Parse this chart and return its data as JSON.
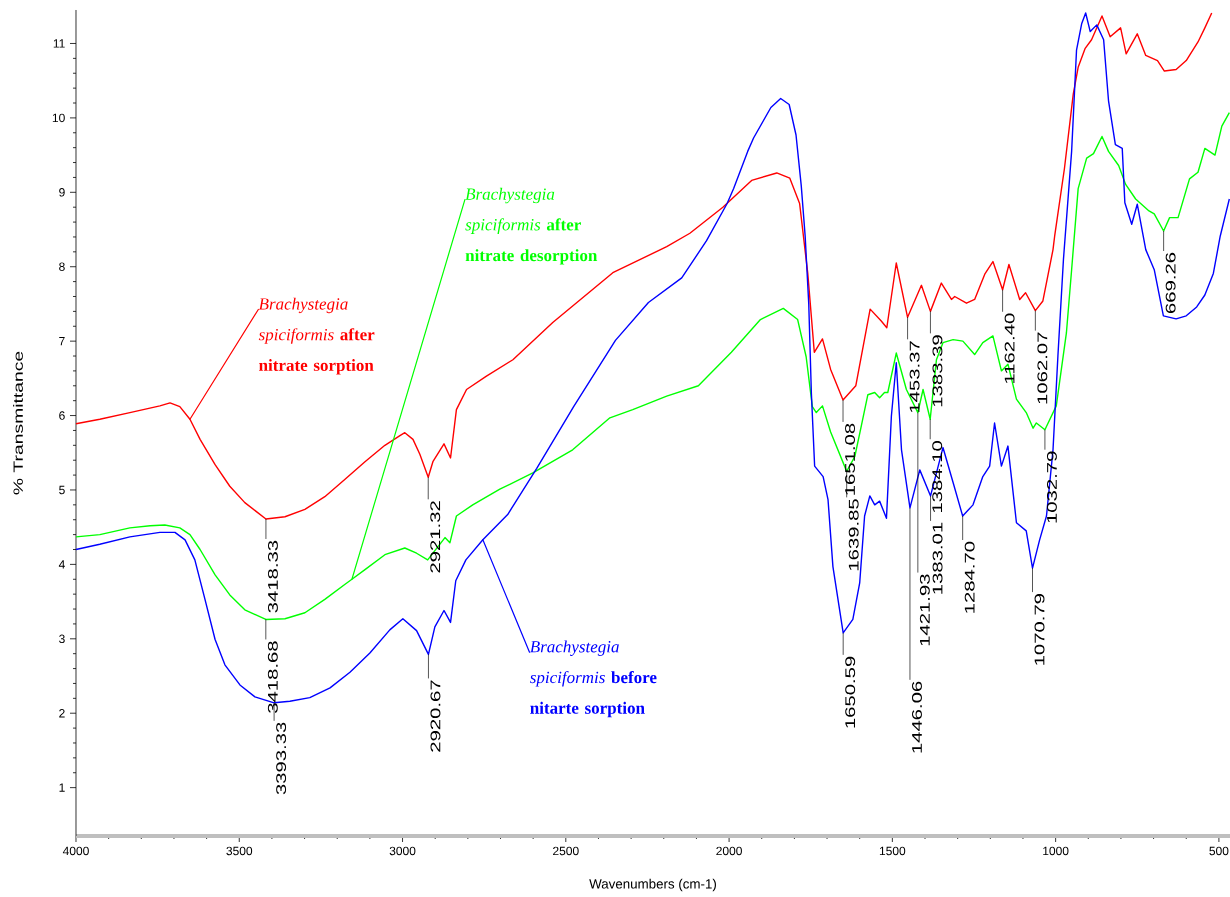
{
  "chart_data": {
    "type": "line",
    "xlabel": "Wavenumbers (cm-1)",
    "ylabel": "% Transmittance",
    "xlim": [
      4000,
      466
    ],
    "ylim": [
      0.35,
      11.45
    ],
    "xticks": [
      4000,
      3500,
      3000,
      2500,
      2000,
      1500,
      1000,
      500
    ],
    "yticks": [
      1,
      2,
      3,
      4,
      5,
      6,
      7,
      8,
      9,
      10,
      11
    ],
    "line_style": "solid",
    "series": [
      {
        "name": "*Brachystegia spiciformis* **after nitrate sorption**",
        "color": "#ff0000",
        "x": [
          4000,
          3927,
          3835,
          3743,
          3712,
          3682,
          3651,
          3620,
          3574,
          3529,
          3483,
          3418.33,
          3360,
          3299,
          3238,
          3177,
          3115,
          3054,
          3008,
          2993,
          2968,
          2947,
          2921.32,
          2907,
          2873,
          2853,
          2835,
          2804,
          2743,
          2662,
          2540,
          2356,
          2191,
          2120,
          2019,
          1931,
          1854,
          1814,
          1784,
          1759,
          1739,
          1714,
          1689,
          1651.08,
          1612,
          1568,
          1534,
          1517,
          1488,
          1453.37,
          1411,
          1383.39,
          1350,
          1319,
          1309,
          1273,
          1248,
          1217,
          1192,
          1162.4,
          1143,
          1110,
          1092,
          1062.07,
          1039,
          1008,
          1003,
          973,
          946,
          931,
          910,
          890,
          858,
          833,
          801,
          784,
          750,
          724,
          688,
          667,
          631,
          600,
          564,
          543,
          522
        ],
        "values": [
          5.89,
          5.95,
          6.04,
          6.13,
          6.17,
          6.12,
          5.95,
          5.68,
          5.34,
          5.05,
          4.83,
          4.61,
          4.64,
          4.74,
          4.91,
          5.14,
          5.38,
          5.6,
          5.73,
          5.77,
          5.68,
          5.48,
          5.17,
          5.38,
          5.62,
          5.43,
          6.08,
          6.35,
          6.53,
          6.75,
          7.25,
          7.92,
          8.27,
          8.45,
          8.8,
          9.16,
          9.26,
          9.19,
          8.85,
          7.91,
          6.85,
          7.03,
          6.62,
          6.21,
          6.4,
          7.43,
          7.27,
          7.18,
          8.05,
          7.32,
          7.75,
          7.4,
          7.78,
          7.56,
          7.6,
          7.51,
          7.56,
          7.9,
          8.07,
          7.69,
          8.03,
          7.56,
          7.65,
          7.41,
          7.54,
          8.23,
          8.41,
          9.32,
          10.32,
          10.68,
          10.93,
          11.05,
          11.37,
          11.09,
          11.21,
          10.86,
          11.13,
          10.84,
          10.77,
          10.63,
          10.65,
          10.77,
          11.02,
          11.21,
          11.41
        ]
      },
      {
        "name": "*Brachystegia spiciformis* **after nitrate desorption**",
        "color": "#00ff00",
        "x": [
          4000,
          3927,
          3835,
          3773,
          3728,
          3682,
          3651,
          3620,
          3574,
          3529,
          3483,
          3418.68,
          3360,
          3299,
          3238,
          3177,
          3155,
          3115,
          3054,
          2993,
          2957,
          2923,
          2870,
          2855,
          2835,
          2785,
          2702,
          2601,
          2479,
          2365,
          2295,
          2191,
          2094,
          1993,
          1904,
          1834,
          1790,
          1764,
          1745,
          1733,
          1714,
          1689,
          1639.85,
          1615,
          1595,
          1575,
          1554,
          1539,
          1524,
          1514,
          1488,
          1457,
          1421.93,
          1406,
          1384.1,
          1365,
          1345,
          1314,
          1284,
          1248,
          1223,
          1192,
          1166,
          1146,
          1120,
          1090,
          1069,
          1059,
          1032.79,
          998,
          967,
          951,
          931,
          905,
          884,
          858,
          838,
          807,
          786,
          755,
          714,
          698,
          669.26,
          651,
          625,
          590,
          564,
          543,
          512,
          491,
          468
        ],
        "values": [
          4.37,
          4.4,
          4.49,
          4.52,
          4.53,
          4.49,
          4.4,
          4.2,
          3.86,
          3.59,
          3.39,
          3.26,
          3.27,
          3.35,
          3.53,
          3.73,
          3.8,
          3.93,
          4.13,
          4.22,
          4.15,
          4.06,
          4.36,
          4.29,
          4.65,
          4.8,
          5.01,
          5.23,
          5.54,
          5.97,
          6.08,
          6.26,
          6.4,
          6.85,
          7.29,
          7.44,
          7.29,
          6.79,
          6.12,
          6.04,
          6.13,
          5.78,
          5.25,
          5.45,
          5.86,
          6.28,
          6.31,
          6.24,
          6.31,
          6.31,
          6.84,
          6.35,
          6.04,
          6.35,
          5.95,
          6.75,
          6.98,
          7.02,
          7.0,
          6.82,
          6.98,
          7.07,
          6.6,
          6.69,
          6.22,
          6.04,
          5.83,
          5.9,
          5.81,
          6.13,
          7.11,
          7.96,
          9.05,
          9.46,
          9.52,
          9.75,
          9.55,
          9.36,
          9.11,
          8.91,
          8.75,
          8.71,
          8.48,
          8.66,
          8.66,
          9.18,
          9.27,
          9.59,
          9.5,
          9.89,
          10.07
        ]
      },
      {
        "name": "*Brachystegia spiciformis* **before nitarte sorption**",
        "color": "#0000ff",
        "x": [
          4000,
          3927,
          3835,
          3743,
          3697,
          3666,
          3636,
          3605,
          3574,
          3544,
          3498,
          3452,
          3393.33,
          3345,
          3284,
          3222,
          3161,
          3100,
          3039,
          2999,
          2957,
          2920.67,
          2901,
          2873,
          2853,
          2837,
          2806,
          2754,
          2678,
          2589,
          2476,
          2348,
          2247,
          2145,
          2069,
          2006,
          1986,
          1943,
          1925,
          1872,
          1842,
          1816,
          1795,
          1779,
          1767,
          1756,
          1748,
          1738,
          1712,
          1697,
          1682,
          1650.59,
          1621,
          1600,
          1585,
          1569,
          1554,
          1539,
          1518,
          1503,
          1488,
          1472,
          1446.06,
          1416,
          1383.01,
          1345,
          1314,
          1284.7,
          1253,
          1223,
          1202,
          1187,
          1166,
          1146,
          1120,
          1090,
          1070.79,
          1049,
          1028,
          1008,
          993,
          976,
          951,
          936,
          920,
          908,
          894,
          874,
          853,
          838,
          817,
          796,
          788,
          767,
          750,
          724,
          698,
          670,
          631,
          600,
          568,
          543,
          517,
          496,
          468
        ],
        "values": [
          4.2,
          4.27,
          4.37,
          4.43,
          4.43,
          4.33,
          4.06,
          3.53,
          2.99,
          2.65,
          2.38,
          2.22,
          2.14,
          2.16,
          2.21,
          2.34,
          2.55,
          2.81,
          3.12,
          3.27,
          3.11,
          2.79,
          3.16,
          3.38,
          3.22,
          3.78,
          4.06,
          4.33,
          4.67,
          5.29,
          6.12,
          7.01,
          7.52,
          7.85,
          8.35,
          8.85,
          9.05,
          9.55,
          9.73,
          10.14,
          10.26,
          10.18,
          9.77,
          9.09,
          8.41,
          7.5,
          6.3,
          5.32,
          5.18,
          4.87,
          3.97,
          3.08,
          3.26,
          3.75,
          4.65,
          4.92,
          4.8,
          4.85,
          4.62,
          5.99,
          6.71,
          5.54,
          4.76,
          5.27,
          4.92,
          5.57,
          5.1,
          4.65,
          4.8,
          5.18,
          5.32,
          5.9,
          5.32,
          5.59,
          4.56,
          4.45,
          3.95,
          4.33,
          4.65,
          5.54,
          6.8,
          8.1,
          9.55,
          10.91,
          11.27,
          11.41,
          11.16,
          11.25,
          11.05,
          10.23,
          9.64,
          9.59,
          8.86,
          8.57,
          8.84,
          8.23,
          7.96,
          7.34,
          7.3,
          7.34,
          7.46,
          7.62,
          7.91,
          8.41,
          8.91
        ]
      }
    ],
    "annotations": [
      {
        "text": "3418.33",
        "x": 3418.33,
        "y": 4.61
      },
      {
        "text": "2921.32",
        "x": 2921.32,
        "y": 5.17
      },
      {
        "text": "1651.08",
        "x": 1651.08,
        "y": 6.21
      },
      {
        "text": "1453.37",
        "x": 1453.37,
        "y": 7.32
      },
      {
        "text": "1383.39",
        "x": 1383.39,
        "y": 7.4
      },
      {
        "text": "1162.40",
        "x": 1162.4,
        "y": 7.69
      },
      {
        "text": "1062.07",
        "x": 1062.07,
        "y": 7.41
      },
      {
        "text": "3418.68",
        "x": 3418.68,
        "y": 3.26
      },
      {
        "text": "1639.85",
        "x": 1639.85,
        "y": 5.25
      },
      {
        "text": "1421.93",
        "x": 1421.93,
        "y": 6.04
      },
      {
        "text": "1384.10",
        "x": 1384.1,
        "y": 5.95
      },
      {
        "text": "1032.79",
        "x": 1032.79,
        "y": 5.81
      },
      {
        "text": "669.26",
        "x": 669.26,
        "y": 8.48
      },
      {
        "text": "3393.33",
        "x": 3393.33,
        "y": 2.14
      },
      {
        "text": "2920.67",
        "x": 2920.67,
        "y": 2.79
      },
      {
        "text": "1650.59",
        "x": 1650.59,
        "y": 3.08
      },
      {
        "text": "1446.06",
        "x": 1446.06,
        "y": 4.76
      },
      {
        "text": "1383.01",
        "x": 1383.01,
        "y": 4.92
      },
      {
        "text": "1284.70",
        "x": 1284.7,
        "y": 4.65
      },
      {
        "text": "1070.79",
        "x": 1070.79,
        "y": 3.95
      }
    ]
  }
}
